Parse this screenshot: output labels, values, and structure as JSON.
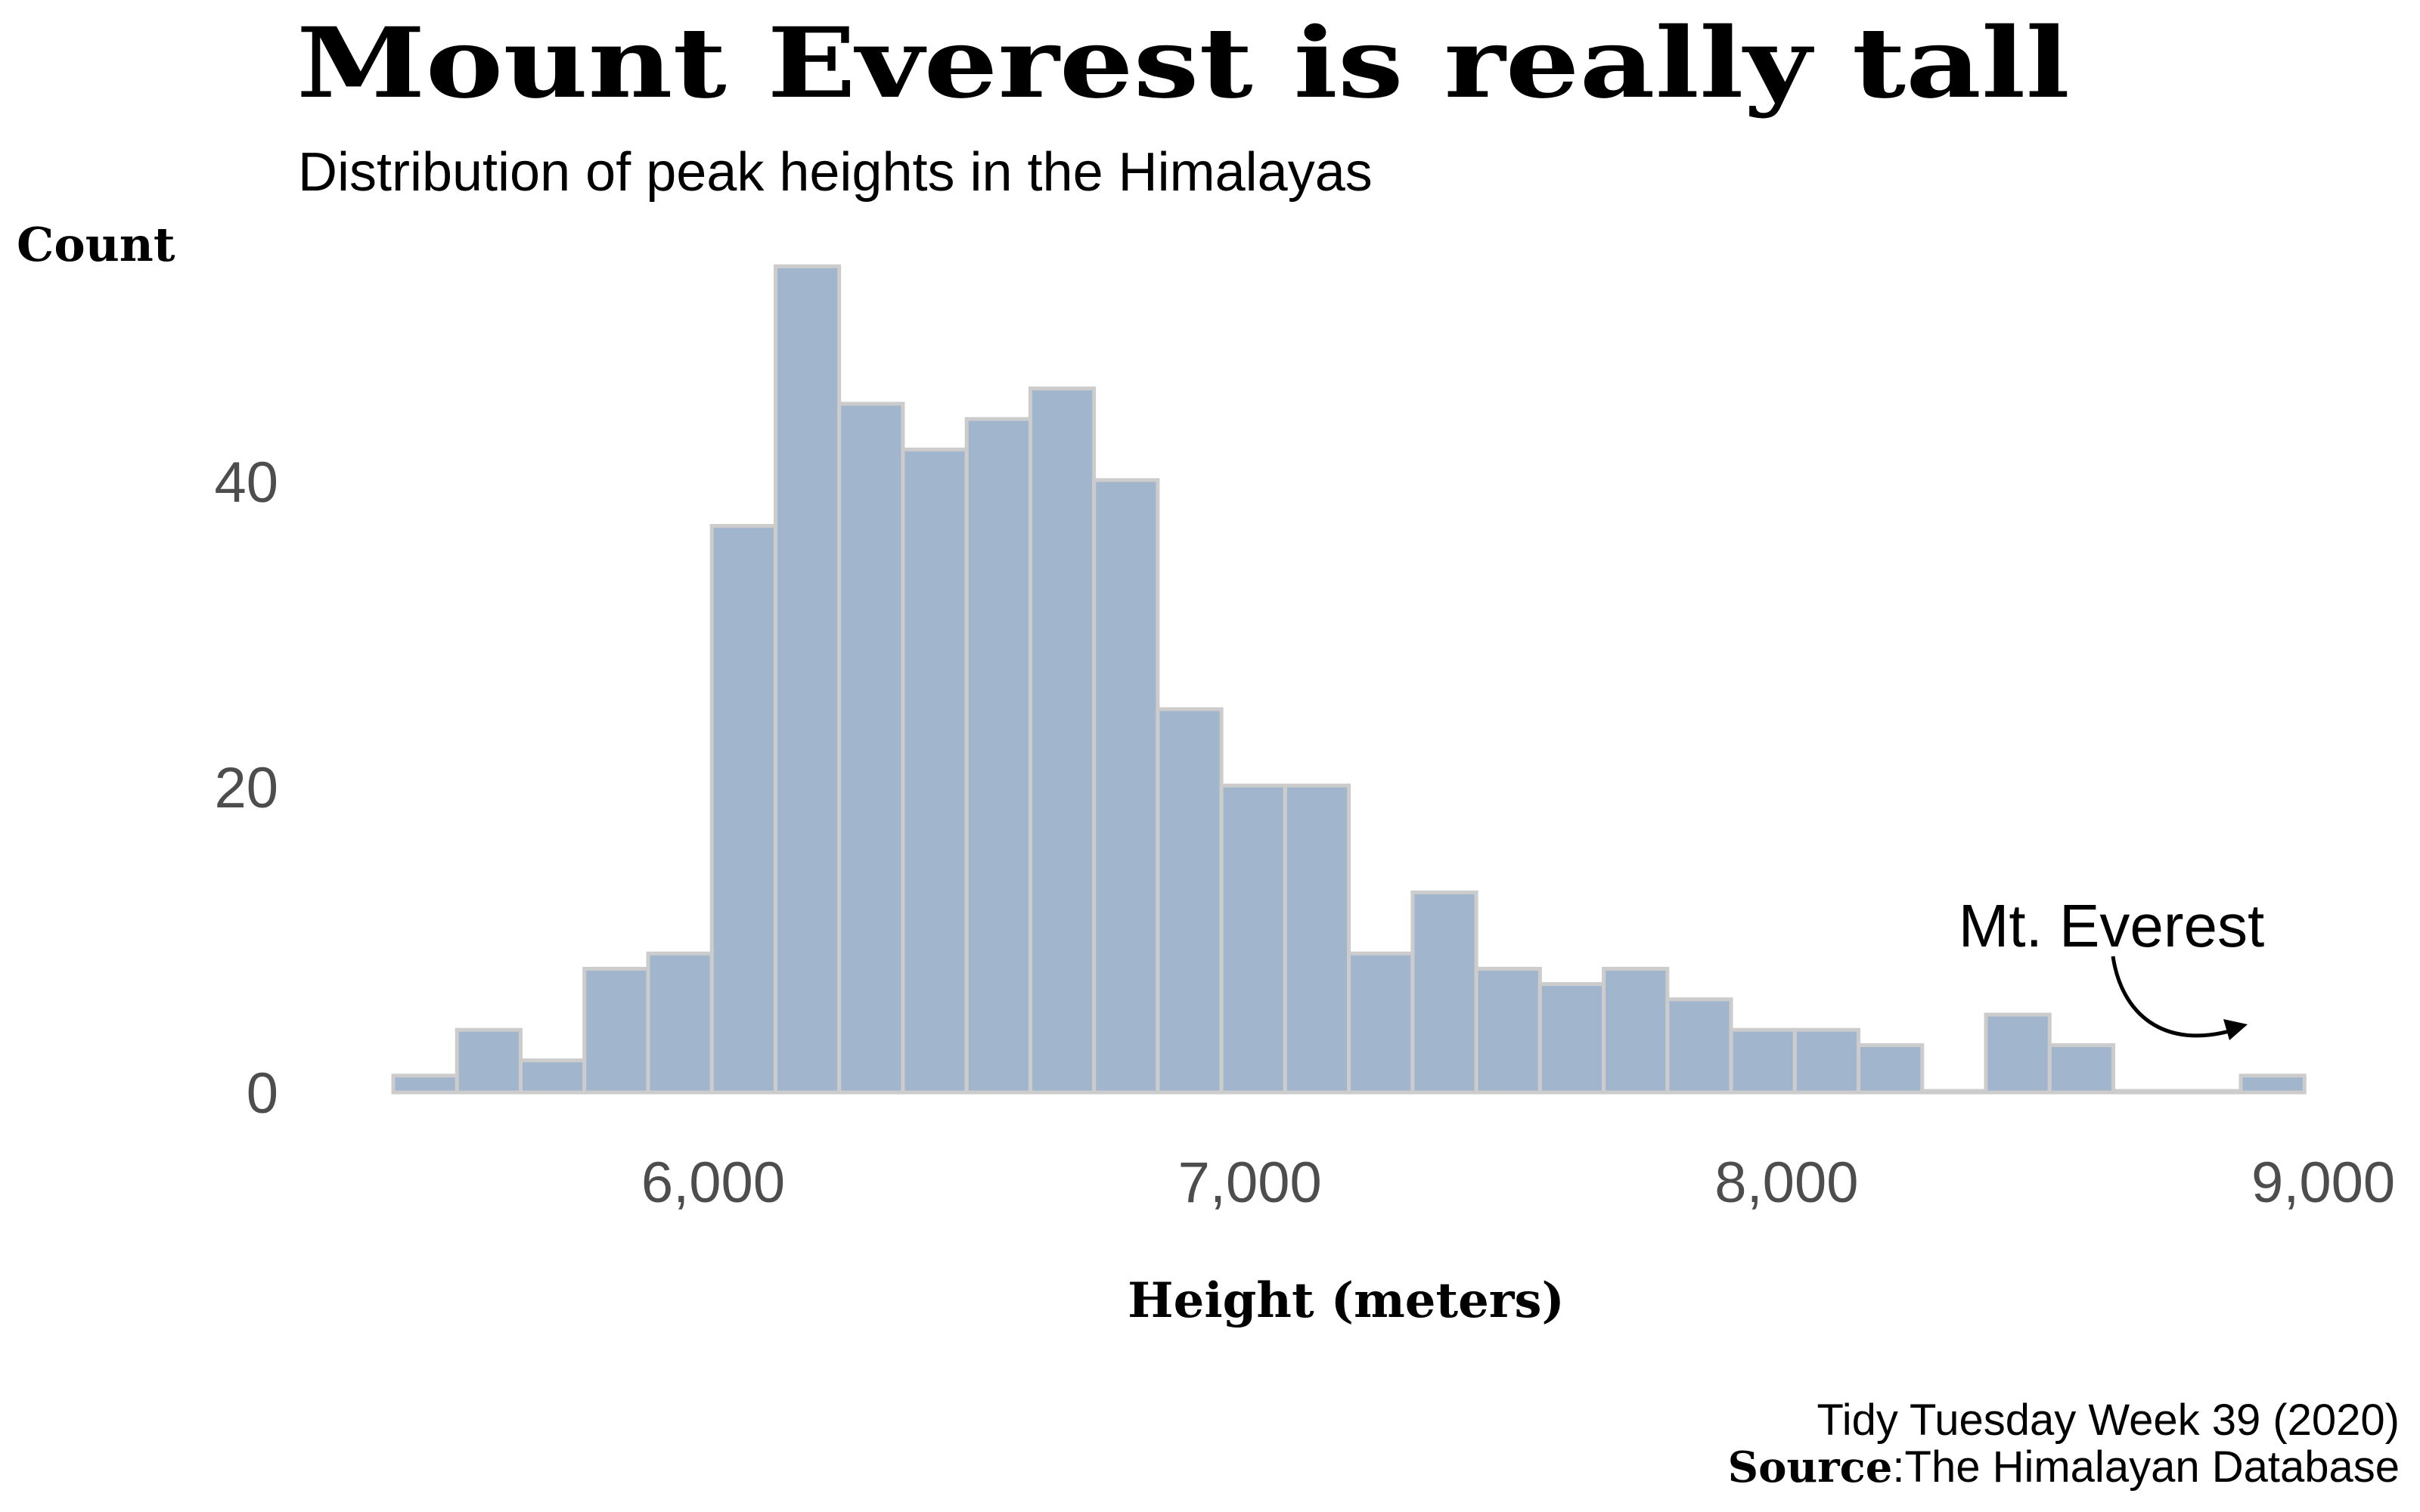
{
  "chart_data": {
    "type": "bar",
    "title": "Mount Everest is really tall",
    "subtitle": "Distribution of peak heights in the Himalayas",
    "xlabel": "Height (meters)",
    "ylabel": "Count",
    "bin_start": 5404,
    "bin_width": 118.7,
    "values": [
      1,
      4,
      2,
      8,
      9,
      37,
      54,
      45,
      42,
      44,
      46,
      40,
      25,
      20,
      20,
      9,
      13,
      8,
      7,
      8,
      6,
      4,
      4,
      3,
      0,
      5,
      3,
      0,
      0,
      1
    ],
    "xlim": [
      5300,
      9000
    ],
    "ylim": [
      0,
      56
    ],
    "x_ticks": [
      6000,
      7000,
      8000,
      9000
    ],
    "x_tick_labels": [
      "6,000",
      "7,000",
      "8,000",
      "9,000"
    ],
    "y_ticks": [
      0,
      20,
      40
    ],
    "y_tick_labels": [
      "0",
      "20",
      "40"
    ],
    "grid": false,
    "bar_fill": "#a1b6cd",
    "bar_stroke": "#cccccc",
    "annotation": {
      "text": "Mt. Everest",
      "target_x": 8849,
      "target_y": 4
    },
    "caption_line1": "Tidy Tuesday Week 39 (2020)",
    "caption_source_label": "Source",
    "caption_source_text": ":The Himalayan Database"
  }
}
